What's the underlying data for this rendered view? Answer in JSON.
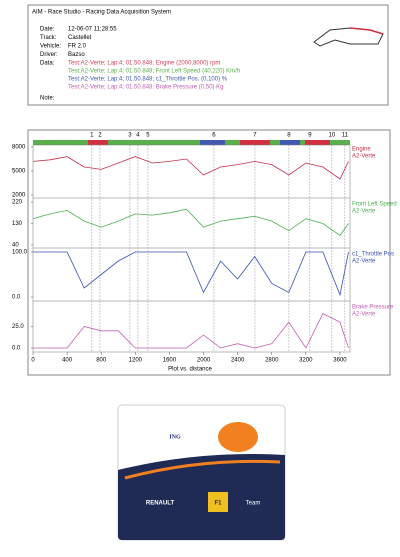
{
  "header": {
    "title": "AIM - Race Studio - Racing Data Acquisition System",
    "fields": [
      {
        "label": "Date:",
        "value": "12-06-07 11:28:55"
      },
      {
        "label": "Track:",
        "value": "Castellet"
      },
      {
        "label": "Vehicle:",
        "value": "FR 2.0"
      },
      {
        "label": "Driver:",
        "value": "Bazso"
      }
    ],
    "data_label": "Data:",
    "data_lines": [
      {
        "text": "Test:A2-Verte; Lap:4; 01.50.848; Engine (2000,8000) rpm",
        "color": "#d0405a"
      },
      {
        "text": "Test:A2-Verte; Lap:4; 01.50.848; Front Left Speed (40,220) Km/h",
        "color": "#5ab04a"
      },
      {
        "text": "Test:A2-Verte; Lap:4; 01.50.848; c1_Throttle Pos. (0,100) %",
        "color": "#4058b0"
      },
      {
        "text": "Test:A2-Verte; Lap:4; 01.50.848; Brake Pressure (0,50) Kg",
        "color": "#c060b0"
      }
    ],
    "note_label": "Note:"
  },
  "chart_data": {
    "type": "line",
    "xlabel": "Plot vs. distance",
    "xlim": [
      0,
      3700
    ],
    "xticks": [
      0,
      400,
      800,
      1200,
      1600,
      2000,
      2400,
      2800,
      3200,
      3600
    ],
    "x": [
      0,
      200,
      400,
      600,
      800,
      1000,
      1200,
      1400,
      1600,
      1800,
      2000,
      2200,
      2400,
      2600,
      2800,
      3000,
      3200,
      3400,
      3600,
      3700
    ],
    "sectors": [
      {
        "label": "1",
        "x": 690
      },
      {
        "label": "2",
        "x": 785
      },
      {
        "label": "3",
        "x": 1137
      },
      {
        "label": "4",
        "x": 1231
      },
      {
        "label": "5",
        "x": 1348
      },
      {
        "label": "6",
        "x": 2122
      },
      {
        "label": "7",
        "x": 2603
      },
      {
        "label": "8",
        "x": 3001
      },
      {
        "label": "9",
        "x": 3247
      },
      {
        "label": "10",
        "x": 3505
      },
      {
        "label": "11",
        "x": 3657
      }
    ],
    "panels": [
      {
        "ylim": [
          2000,
          8000
        ],
        "yticks": [
          8000,
          5000,
          2000
        ],
        "channel": "A2-Verte",
        "series": [
          {
            "name": "Engine",
            "color": "#c0304a",
            "values": [
              6200,
              6400,
              6800,
              5500,
              5200,
              6000,
              6800,
              6000,
              6200,
              6500,
              4500,
              5500,
              5800,
              6200,
              5800,
              4500,
              6000,
              5500,
              4000,
              6200
            ]
          }
        ]
      },
      {
        "ylim": [
          40,
          220
        ],
        "yticks": [
          220,
          130,
          40
        ],
        "channel": "A2-Verte",
        "series": [
          {
            "name": "Front Left Speed",
            "color": "#4caf50",
            "values": [
              150,
              170,
              185,
              140,
              115,
              140,
              170,
              165,
              175,
              190,
              115,
              140,
              150,
              160,
              140,
              100,
              150,
              130,
              80,
              130
            ]
          }
        ]
      },
      {
        "ylim": [
          0,
          100
        ],
        "yticks": [
          {
            "value": 100,
            "label": "100.0"
          },
          {
            "value": 0,
            "label": "0.0"
          }
        ],
        "channel": "A2-Verte",
        "series": [
          {
            "name": "c1_Throttle Pos",
            "color": "#3a4fb0",
            "values": [
              100,
              100,
              100,
              20,
              50,
              80,
              100,
              100,
              100,
              100,
              10,
              80,
              40,
              90,
              30,
              10,
              100,
              100,
              5,
              100
            ]
          }
        ]
      },
      {
        "ylim": [
          0,
          50
        ],
        "yticks": [
          {
            "value": 25,
            "label": "25.0"
          },
          {
            "value": 0,
            "label": "0.0"
          }
        ],
        "channel": "A2-Verte",
        "series": [
          {
            "name": "Brake Pressure",
            "color": "#c060b0",
            "values": [
              0,
              0,
              0,
              25,
              20,
              20,
              0,
              0,
              0,
              0,
              15,
              0,
              5,
              0,
              5,
              30,
              0,
              40,
              30,
              0
            ]
          }
        ]
      }
    ]
  },
  "logo": {
    "ing": "ING",
    "renault": "RENAULT",
    "f1": "F1",
    "team": "Team"
  }
}
